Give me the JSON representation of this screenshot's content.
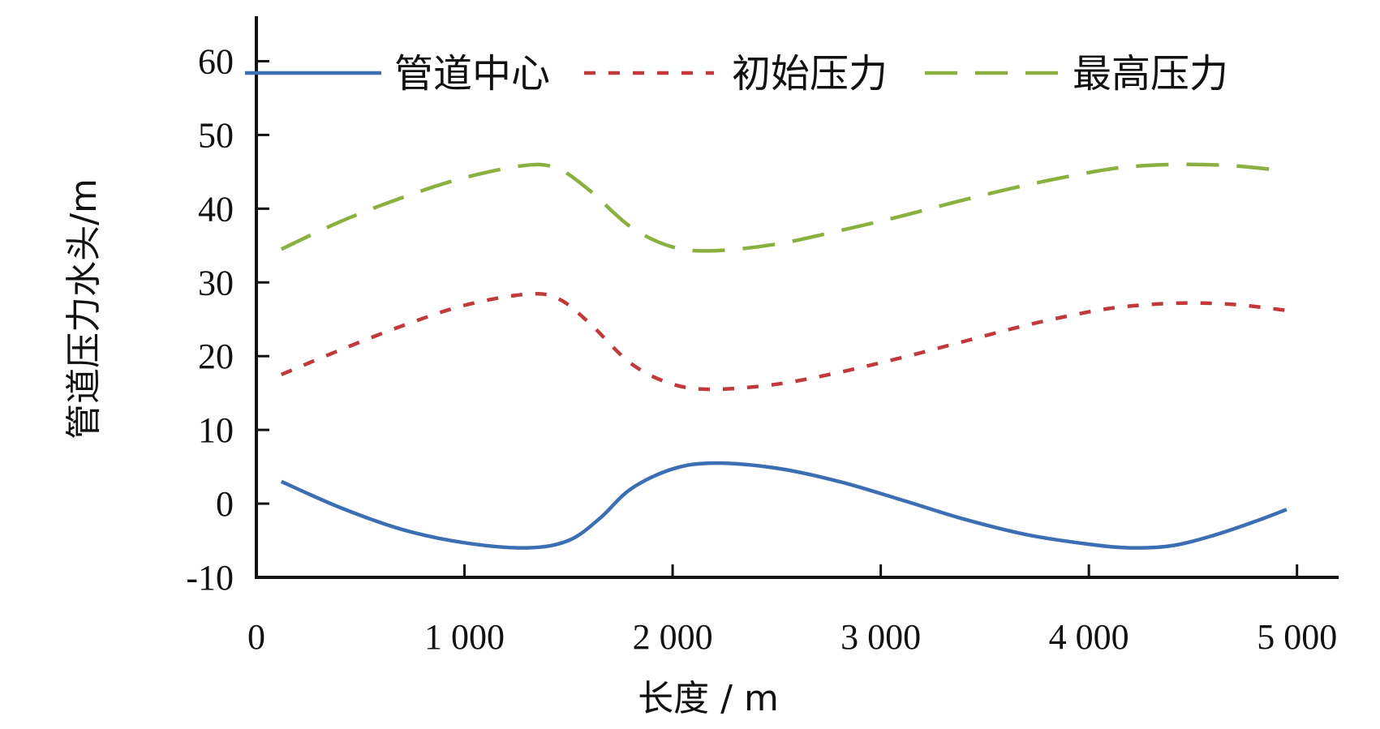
{
  "chart_data": {
    "type": "line",
    "title": "",
    "xlabel": "长度 / m",
    "ylabel": "管道压力水头/m",
    "xlim": [
      0,
      5200
    ],
    "ylim": [
      -10,
      65
    ],
    "x_ticks": [
      0,
      1000,
      2000,
      3000,
      4000,
      5000
    ],
    "x_tick_labels": [
      "0",
      "1 000",
      "2 000",
      "3 000",
      "4 000",
      "5 000"
    ],
    "y_ticks": [
      -10,
      0,
      10,
      20,
      30,
      40,
      50,
      60
    ],
    "y_tick_labels": [
      "-10",
      "0",
      "10",
      "20",
      "30",
      "40",
      "50",
      "60"
    ],
    "grid": false,
    "legend_position": "top",
    "series": [
      {
        "name": "管道中心",
        "color": "#3c6eb4",
        "dash": "solid",
        "points": [
          [
            120,
            3
          ],
          [
            400,
            -0.5
          ],
          [
            700,
            -3.5
          ],
          [
            1000,
            -5.3
          ],
          [
            1300,
            -6
          ],
          [
            1500,
            -5
          ],
          [
            1650,
            -2
          ],
          [
            1800,
            2
          ],
          [
            2000,
            4.7
          ],
          [
            2200,
            5.5
          ],
          [
            2500,
            4.8
          ],
          [
            2800,
            3
          ],
          [
            3100,
            0.5
          ],
          [
            3400,
            -2.1
          ],
          [
            3700,
            -4.2
          ],
          [
            4000,
            -5.5
          ],
          [
            4200,
            -6
          ],
          [
            4400,
            -5.7
          ],
          [
            4600,
            -4.3
          ],
          [
            4800,
            -2.4
          ],
          [
            4950,
            -0.8
          ]
        ]
      },
      {
        "name": "初始压力",
        "color": "#c0393b",
        "dash": "short-dash",
        "points": [
          [
            120,
            17.5
          ],
          [
            400,
            20.8
          ],
          [
            700,
            24.1
          ],
          [
            1000,
            26.9
          ],
          [
            1300,
            28.4
          ],
          [
            1450,
            27.8
          ],
          [
            1600,
            24.5
          ],
          [
            1800,
            19
          ],
          [
            2000,
            16.2
          ],
          [
            2200,
            15.5
          ],
          [
            2500,
            16.2
          ],
          [
            2800,
            17.8
          ],
          [
            3100,
            19.8
          ],
          [
            3400,
            22
          ],
          [
            3700,
            24.2
          ],
          [
            4000,
            26
          ],
          [
            4200,
            26.8
          ],
          [
            4450,
            27.2
          ],
          [
            4700,
            27
          ],
          [
            4950,
            26.2
          ]
        ]
      },
      {
        "name": "最高压力",
        "color": "#8ab140",
        "dash": "long-dash",
        "points": [
          [
            120,
            34.5
          ],
          [
            400,
            38.2
          ],
          [
            700,
            41.5
          ],
          [
            1000,
            44.2
          ],
          [
            1300,
            45.9
          ],
          [
            1450,
            45.4
          ],
          [
            1600,
            42.5
          ],
          [
            1800,
            37.5
          ],
          [
            2000,
            34.8
          ],
          [
            2200,
            34.3
          ],
          [
            2500,
            35.2
          ],
          [
            2800,
            37
          ],
          [
            3100,
            39
          ],
          [
            3400,
            41.2
          ],
          [
            3700,
            43.2
          ],
          [
            4000,
            44.9
          ],
          [
            4200,
            45.7
          ],
          [
            4450,
            46
          ],
          [
            4700,
            45.8
          ],
          [
            4950,
            45.1
          ]
        ]
      }
    ]
  }
}
